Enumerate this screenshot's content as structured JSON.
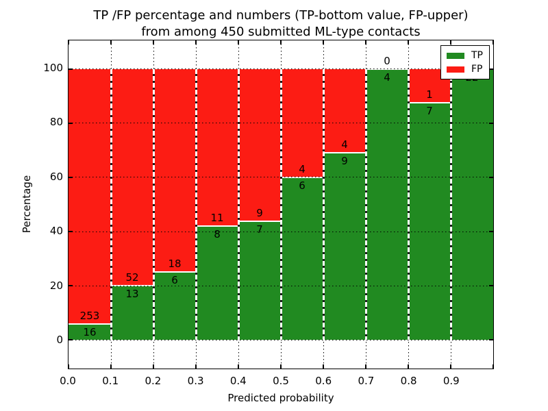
{
  "title": {
    "line1": "TP /FP percentage and numbers (TP-bottom value, FP-upper)",
    "line2": "from among 450 submitted ML-type contacts"
  },
  "axes": {
    "x_label": "Predicted probability",
    "y_label": "Percentage",
    "x_ticks": [
      "0.0",
      "0.1",
      "0.2",
      "0.3",
      "0.4",
      "0.5",
      "0.6",
      "0.7",
      "0.8",
      "0.9"
    ],
    "y_ticks": [
      "0",
      "20",
      "40",
      "60",
      "80",
      "100"
    ]
  },
  "legend": {
    "items": [
      {
        "label": "TP",
        "color": "#218a21"
      },
      {
        "label": "FP",
        "color": "#fc1c14"
      }
    ]
  },
  "chart_data": {
    "type": "bar",
    "stacked": true,
    "normalized_to_percent": true,
    "title": "TP /FP percentage and numbers (TP-bottom value, FP-upper) from among 450 submitted ML-type contacts",
    "xlabel": "Predicted probability",
    "ylabel": "Percentage",
    "categories": [
      "0.0-0.1",
      "0.1-0.2",
      "0.2-0.3",
      "0.3-0.4",
      "0.4-0.5",
      "0.5-0.6",
      "0.6-0.7",
      "0.7-0.8",
      "0.8-0.9",
      "0.9-1.0"
    ],
    "bin_edges": [
      0.0,
      0.1,
      0.2,
      0.3,
      0.4,
      0.5,
      0.6,
      0.7,
      0.8,
      0.9,
      1.0
    ],
    "series": [
      {
        "name": "TP",
        "color": "#218a21",
        "counts": [
          16,
          13,
          6,
          8,
          7,
          6,
          9,
          4,
          7,
          22
        ]
      },
      {
        "name": "FP",
        "color": "#fc1c14",
        "counts": [
          253,
          52,
          18,
          11,
          9,
          4,
          4,
          0,
          1,
          0
        ]
      }
    ],
    "tp_percent": [
      5.9,
      20.0,
      25.0,
      42.1,
      43.8,
      60.0,
      69.2,
      100.0,
      87.5,
      100.0
    ],
    "total_contacts": 450,
    "xlim": [
      0.0,
      1.0
    ],
    "ylim": [
      -10.6,
      110.6
    ],
    "y_tick_values": [
      0,
      20,
      40,
      60,
      80,
      100
    ],
    "grid": true,
    "grid_style": "dotted",
    "bar_edge_style": "white dashed",
    "legend_position": "upper right"
  }
}
